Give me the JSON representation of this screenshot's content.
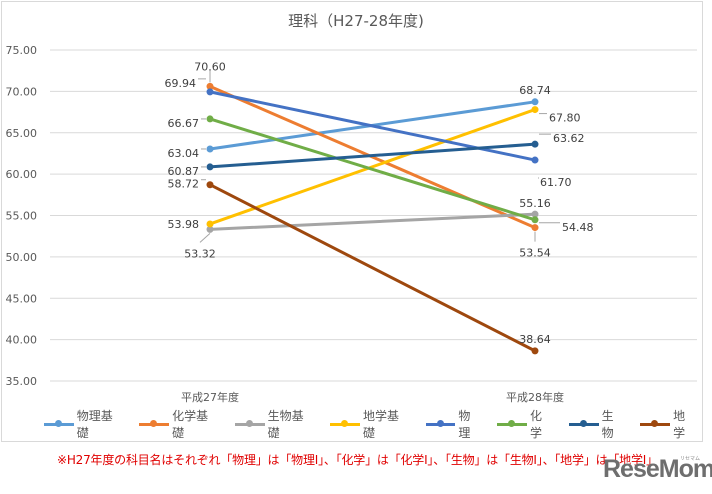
{
  "chart_data": {
    "type": "line",
    "title": "理科（H27-28年度)",
    "xlabel": "",
    "ylabel": "",
    "categories": [
      "平成27年度",
      "平成28年度"
    ],
    "ylim": [
      35,
      75
    ],
    "yticks": [
      "75.00",
      "70.00",
      "65.00",
      "60.00",
      "55.00",
      "50.00",
      "45.00",
      "40.00",
      "35.00"
    ],
    "grid": true,
    "legend_position": "bottom",
    "series": [
      {
        "name": "物理基礎",
        "values": [
          63.04,
          68.74
        ],
        "color": "#5b9bd5"
      },
      {
        "name": "化学基礎",
        "values": [
          70.6,
          53.54
        ],
        "color": "#ed7d31"
      },
      {
        "name": "生物基礎",
        "values": [
          53.32,
          55.16
        ],
        "color": "#a5a5a5"
      },
      {
        "name": "地学基礎",
        "values": [
          53.98,
          67.8
        ],
        "color": "#ffc000"
      },
      {
        "name": "物理",
        "values": [
          69.94,
          61.7
        ],
        "color": "#4472c4"
      },
      {
        "name": "化学",
        "values": [
          66.67,
          54.48
        ],
        "color": "#70ad47"
      },
      {
        "name": "生物",
        "values": [
          60.87,
          63.62
        ],
        "color": "#255e91"
      },
      {
        "name": "地学",
        "values": [
          58.72,
          38.64
        ],
        "color": "#9e480e"
      }
    ],
    "data_labels": {
      "平成27年度": [
        "63.04",
        "70.60",
        "53.32",
        "53.98",
        "69.94",
        "66.67",
        "60.87",
        "58.72"
      ],
      "平成28年度": [
        "68.74",
        "53.54",
        "55.16",
        "67.80",
        "61.70",
        "54.48",
        "63.62",
        "38.64"
      ]
    }
  },
  "note": "※H27年度の科目名はそれぞれ「物理」は「物理I」、「化学」は「化学I」、「生物」は「生物I」、「地学」は「地学I」",
  "logo": {
    "text": "ReseMom",
    "ruby": "リセマム"
  }
}
